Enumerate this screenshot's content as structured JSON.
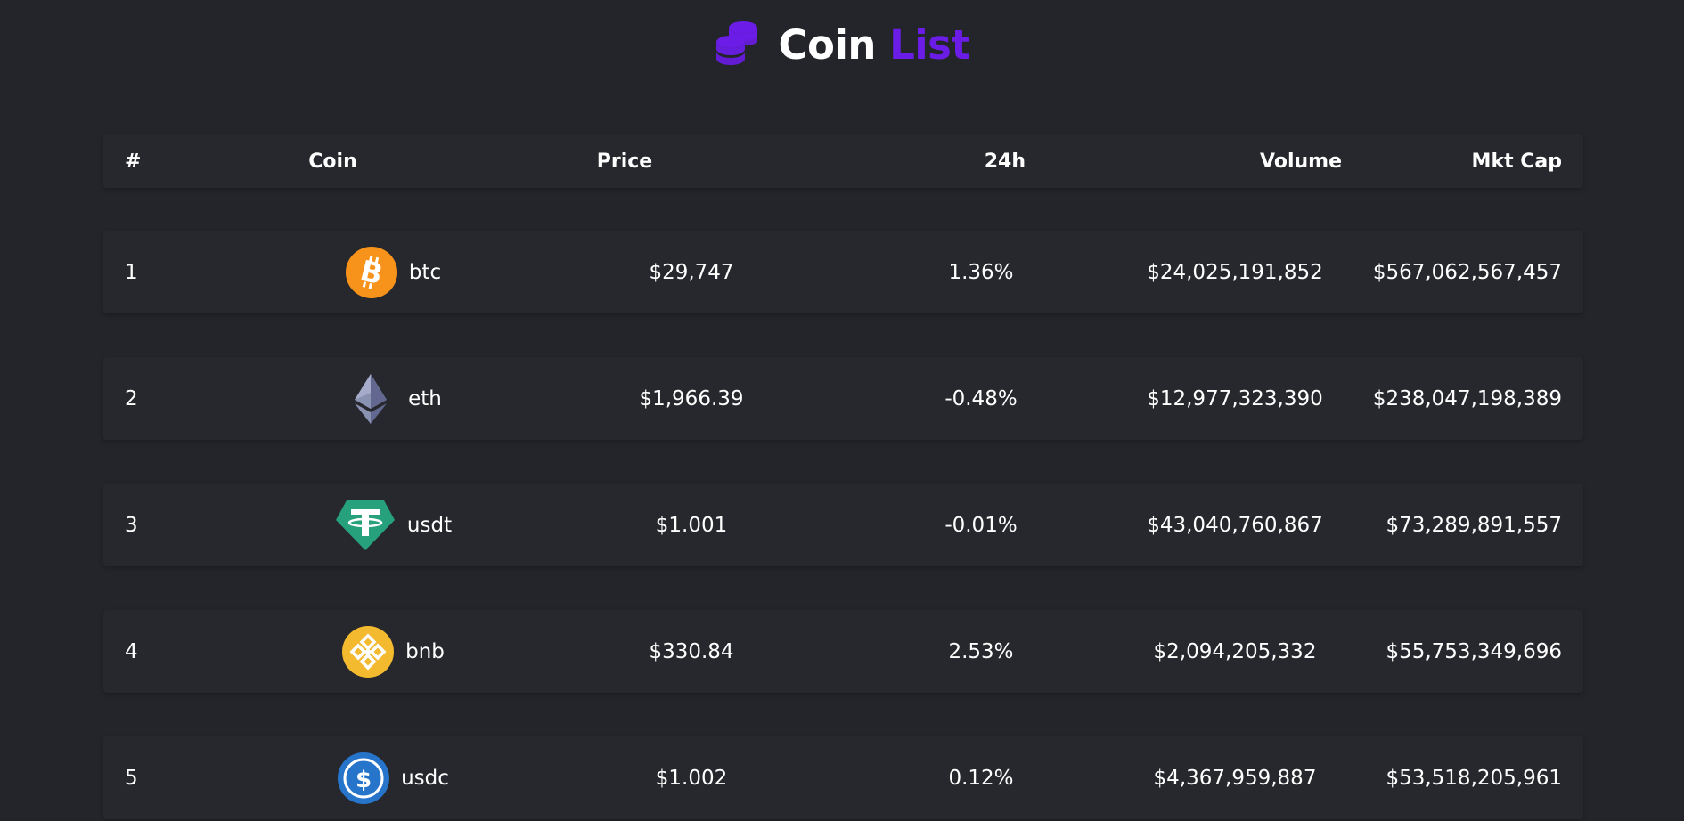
{
  "header": {
    "title_word1": "Coin",
    "title_word2": "List",
    "logo_icon": "coins-stack-icon",
    "accent_color": "#6b1ce6"
  },
  "table": {
    "columns": [
      "#",
      "Coin",
      "Price",
      "24h",
      "Volume",
      "Mkt Cap"
    ],
    "rows": [
      {
        "rank": "1",
        "symbol": "btc",
        "icon": "bitcoin-icon",
        "price": "$29,747",
        "change_24h": "1.36%",
        "volume": "$24,025,191,852",
        "market_cap": "$567,062,567,457"
      },
      {
        "rank": "2",
        "symbol": "eth",
        "icon": "ethereum-icon",
        "price": "$1,966.39",
        "change_24h": "-0.48%",
        "volume": "$12,977,323,390",
        "market_cap": "$238,047,198,389"
      },
      {
        "rank": "3",
        "symbol": "usdt",
        "icon": "tether-icon",
        "price": "$1.001",
        "change_24h": "-0.01%",
        "volume": "$43,040,760,867",
        "market_cap": "$73,289,891,557"
      },
      {
        "rank": "4",
        "symbol": "bnb",
        "icon": "bnb-icon",
        "price": "$330.84",
        "change_24h": "2.53%",
        "volume": "$2,094,205,332",
        "market_cap": "$55,753,349,696"
      },
      {
        "rank": "5",
        "symbol": "usdc",
        "icon": "usdc-icon",
        "price": "$1.002",
        "change_24h": "0.12%",
        "volume": "$4,367,959,887",
        "market_cap": "$53,518,205,961"
      }
    ]
  },
  "colors": {
    "background": "#24252a",
    "row_background": "#27282d",
    "text": "#ffffff",
    "btc": "#f7931a",
    "eth": "#8a92b2",
    "usdt": "#26a17b",
    "bnb": "#f3ba2f",
    "usdc": "#2775ca"
  }
}
